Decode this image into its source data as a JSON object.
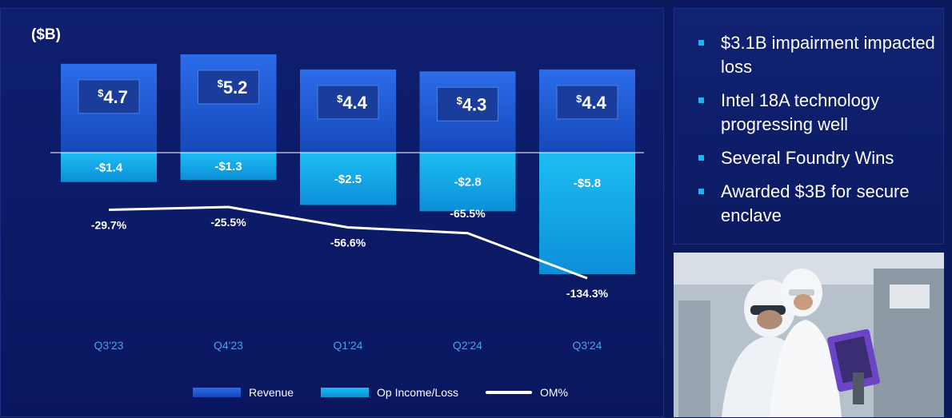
{
  "chart_data": {
    "type": "bar",
    "unit_label": "($B)",
    "categories": [
      "Q3'23",
      "Q4'23",
      "Q1'24",
      "Q2'24",
      "Q3'24"
    ],
    "series": [
      {
        "name": "Revenue",
        "values": [
          4.7,
          5.2,
          4.4,
          4.3,
          4.4
        ],
        "labels": [
          "4.7",
          "5.2",
          "4.4",
          "4.3",
          "4.4"
        ],
        "color": "#1f62e0"
      },
      {
        "name": "Op Income/Loss",
        "values": [
          -1.4,
          -1.3,
          -2.5,
          -2.8,
          -5.8
        ],
        "labels": [
          "-$1.4",
          "-$1.3",
          "-$2.5",
          "-$2.8",
          "-$5.8"
        ],
        "color": "#13a9ec"
      },
      {
        "name": "OM%",
        "values": [
          -29.7,
          -25.5,
          -56.6,
          -65.5,
          -134.3
        ],
        "labels": [
          "-29.7%",
          "-25.5%",
          "-56.6%",
          "-65.5%",
          "-134.3%"
        ],
        "color": "#ffffff"
      }
    ],
    "currency_symbol": "$",
    "legend_placement": "bottom",
    "grid": false
  },
  "bullets": [
    "$3.1B impairment impacted loss",
    "Intel 18A technology progressing well",
    "Several Foundry Wins",
    "Awarded $3B for secure enclave"
  ],
  "colors": {
    "background": "#0b1a5e",
    "bullet_marker": "#19b6f0",
    "axis_label": "#4f9fe8"
  },
  "photo": {
    "icon": "cleanroom-workers-photo"
  }
}
